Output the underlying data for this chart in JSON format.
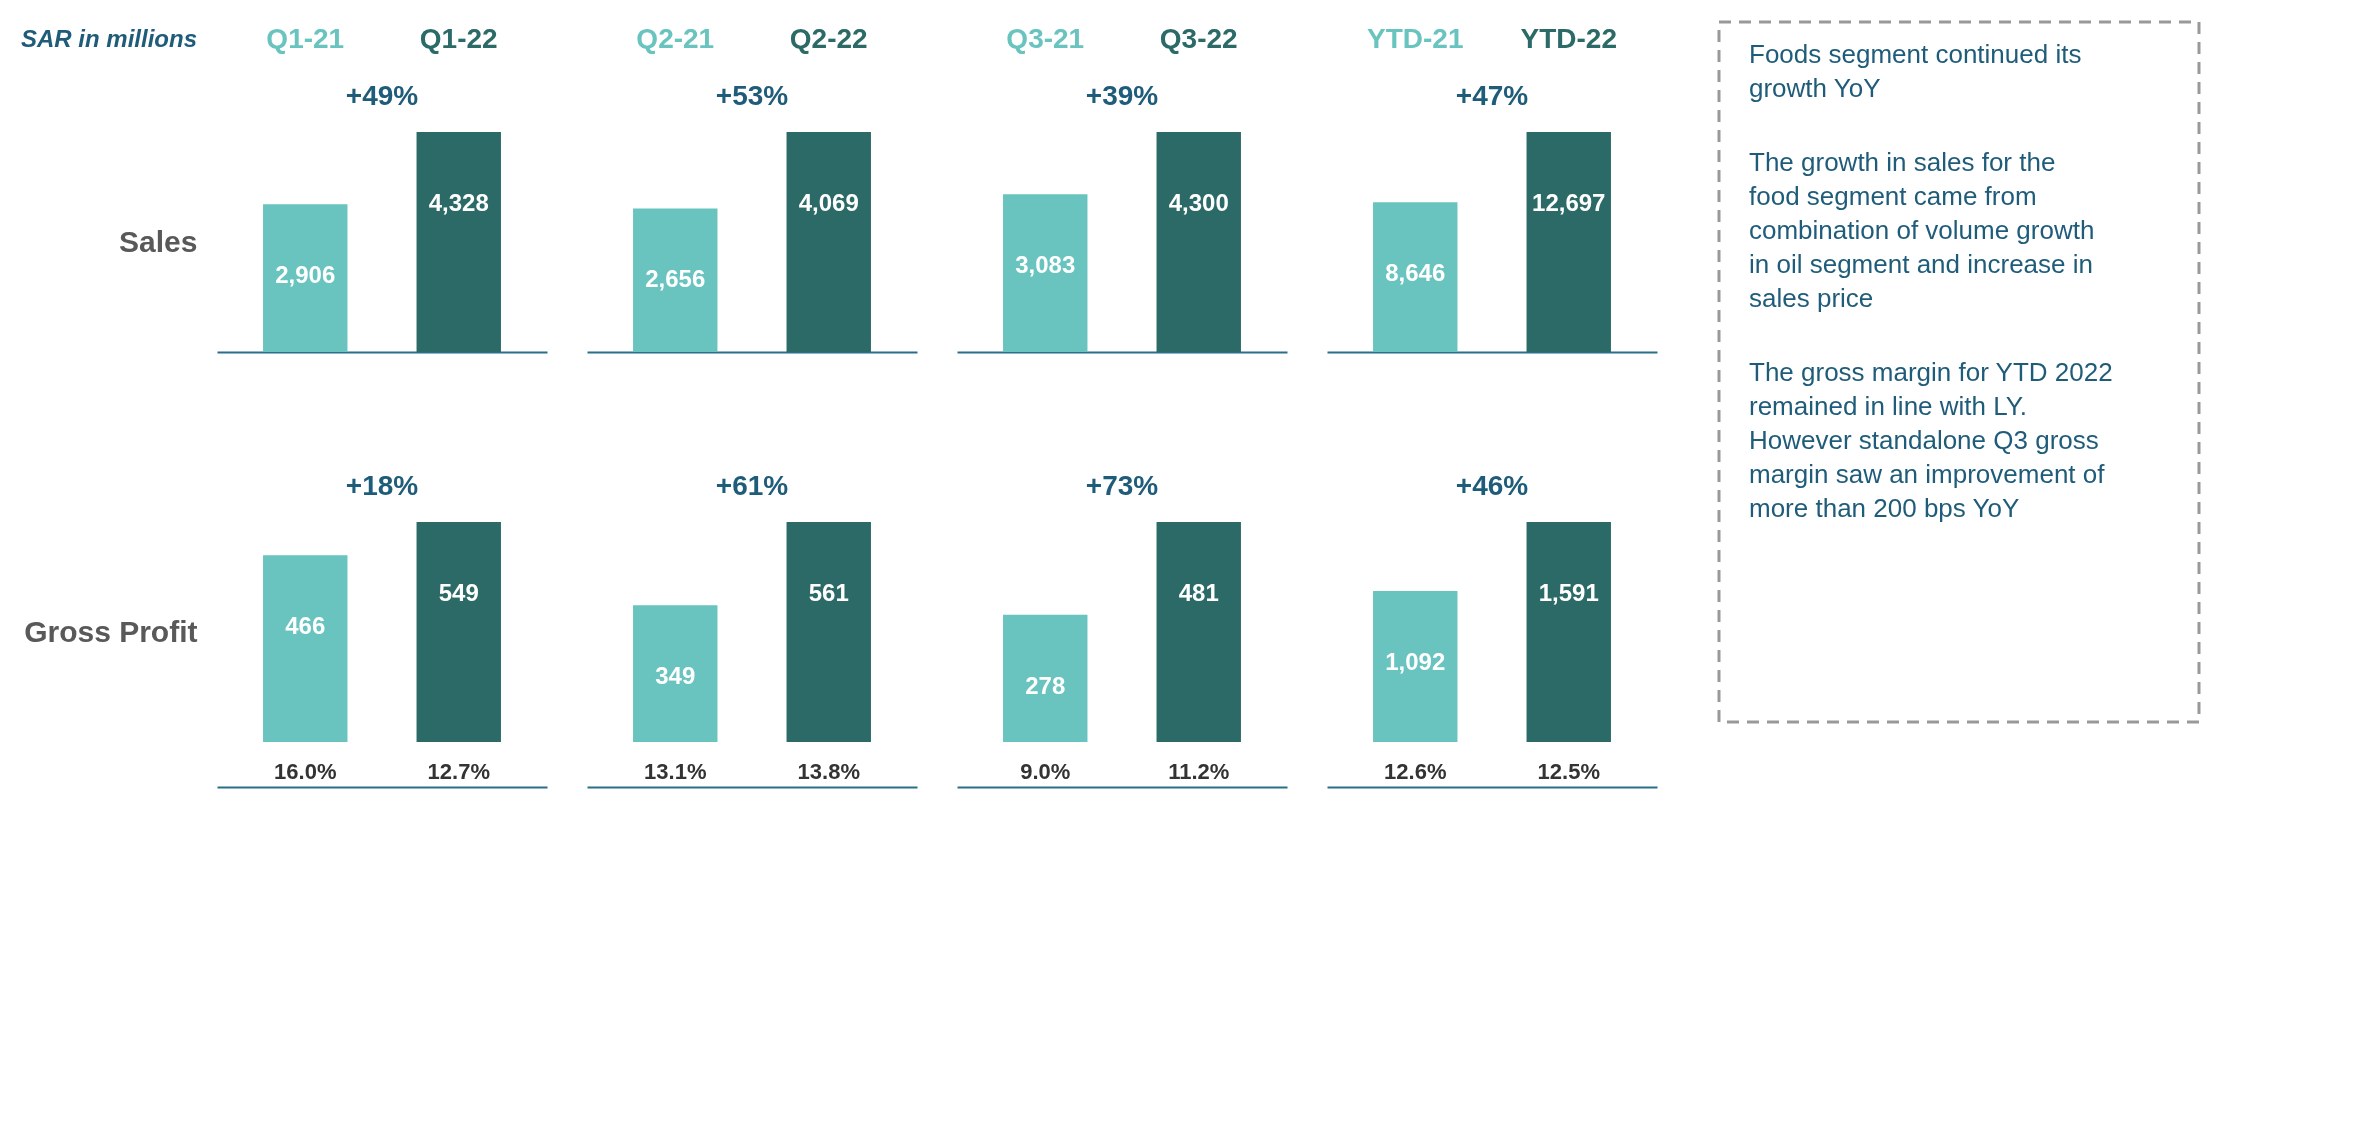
{
  "chart_data": [
    {
      "type": "bar",
      "title": "SAR in millions",
      "ylabel": "Sales",
      "categories": [
        "Q1-21",
        "Q1-22"
      ],
      "values": [
        2906,
        4328
      ],
      "value_labels": [
        "2,906",
        "4,328"
      ],
      "colors": [
        "#69c3bf",
        "#2b6a67"
      ],
      "annotations": [
        "+49%"
      ]
    },
    {
      "type": "bar",
      "categories": [
        "Q2-21",
        "Q2-22"
      ],
      "values": [
        2656,
        4069
      ],
      "value_labels": [
        "2,656",
        "4,069"
      ],
      "colors": [
        "#69c3bf",
        "#2b6a67"
      ],
      "annotations": [
        "+53%"
      ]
    },
    {
      "type": "bar",
      "categories": [
        "Q3-21",
        "Q3-22"
      ],
      "values": [
        3083,
        4300
      ],
      "value_labels": [
        "3,083",
        "4,300"
      ],
      "colors": [
        "#69c3bf",
        "#2b6a67"
      ],
      "annotations": [
        "+39%"
      ]
    },
    {
      "type": "bar",
      "categories": [
        "YTD-21",
        "YTD-22"
      ],
      "values": [
        8646,
        12697
      ],
      "value_labels": [
        "8,646",
        "12,697"
      ],
      "colors": [
        "#69c3bf",
        "#2b6a67"
      ],
      "annotations": [
        "+47%"
      ]
    },
    {
      "type": "bar",
      "ylabel": "Gross Profit",
      "categories": [
        null,
        null
      ],
      "values": [
        466,
        549
      ],
      "colors": [
        "#69c3bf",
        "#2b6a67"
      ],
      "data_labels": true,
      "annotations": [
        "+18%",
        "16.0%",
        "12.7%"
      ]
    },
    {
      "type": "bar",
      "categories": [
        null,
        null
      ],
      "values": [
        349,
        561
      ],
      "colors": [
        "#69c3bf",
        "#2b6a67"
      ],
      "data_labels": true,
      "annotations": [
        "+61%",
        "13.1%",
        "13.8%"
      ]
    },
    {
      "type": "bar",
      "categories": [
        null,
        null
      ],
      "values": [
        278,
        481
      ],
      "colors": [
        "#69c3bf",
        "#2b6a67"
      ],
      "data_labels": true,
      "annotations": [
        "+73%",
        "9.0%",
        "11.2%"
      ]
    },
    {
      "type": "bar",
      "categories": [
        null,
        null
      ],
      "values": [
        1092,
        1591
      ],
      "value_labels": [
        "1,092",
        "1,591"
      ],
      "colors": [
        "#69c3bf",
        "#2b6a67"
      ],
      "annotations": [
        "+46%",
        "12.6%",
        "12.5%"
      ]
    },
    {
      "type": "other",
      "annotations": [
        "Foods segment continued its growth YoY",
        "The growth in sales for the food segment came from combination of volume growth in oil segment and increase in sales price",
        "The gross margin for YTD 2022 remained in line with LY. However standalone Q3 gross margin saw an improvement of more than 200 bps YoY"
      ]
    }
  ]
}
